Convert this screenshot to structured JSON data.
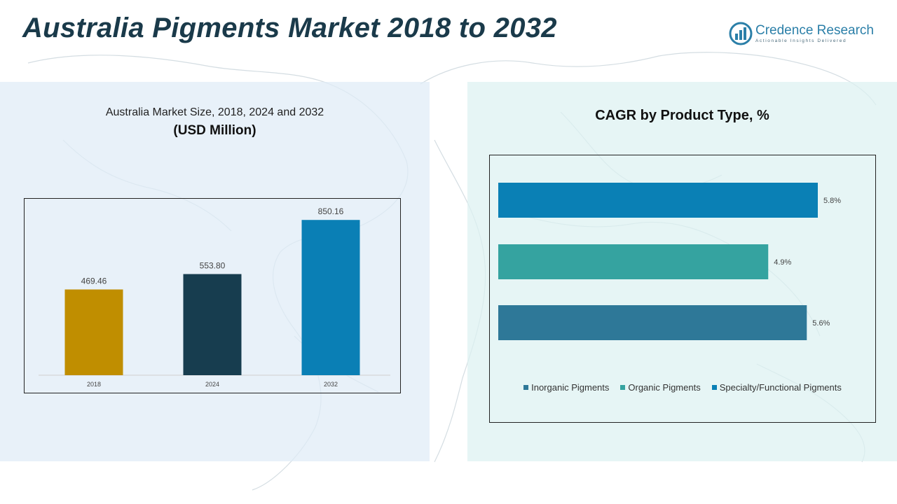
{
  "header": {
    "title": "Australia Pigments Market 2018 to 2032",
    "logo_name": "Credence Research",
    "logo_tagline": "Actionable Insights Delivered"
  },
  "colors": {
    "title": "#1a3a4a",
    "bar_2018": "#c08e00",
    "bar_2024": "#173d4f",
    "bar_2032": "#0a7fb5",
    "inorganic": "#2e7898",
    "organic": "#35a3a0",
    "specialty": "#0a80b5"
  },
  "chart_data": [
    {
      "type": "bar",
      "title": "Australia Market Size, 2018, 2024 and 2032",
      "subtitle": "(USD Million)",
      "categories": [
        "2018",
        "2024",
        "2032"
      ],
      "values": [
        469.46,
        553.8,
        850.16
      ],
      "value_labels": [
        "469.46",
        "553.80",
        "850.16"
      ],
      "ylim": [
        0,
        920
      ],
      "grid": false,
      "legend": "none"
    },
    {
      "type": "bar",
      "orientation": "horizontal",
      "title": "CAGR by Product Type, %",
      "categories": [
        "Specialty/Functional Pigments",
        "Organic Pigments",
        "Inorganic Pigments"
      ],
      "values": [
        5.8,
        4.9,
        5.6
      ],
      "value_labels": [
        "5.8%",
        "4.9%",
        "5.6%"
      ],
      "xlim": [
        0,
        6.0
      ],
      "grid": false,
      "legend": "bottom",
      "legend_entries": [
        "Inorganic Pigments",
        "Organic Pigments",
        "Specialty/Functional Pigments"
      ]
    }
  ]
}
